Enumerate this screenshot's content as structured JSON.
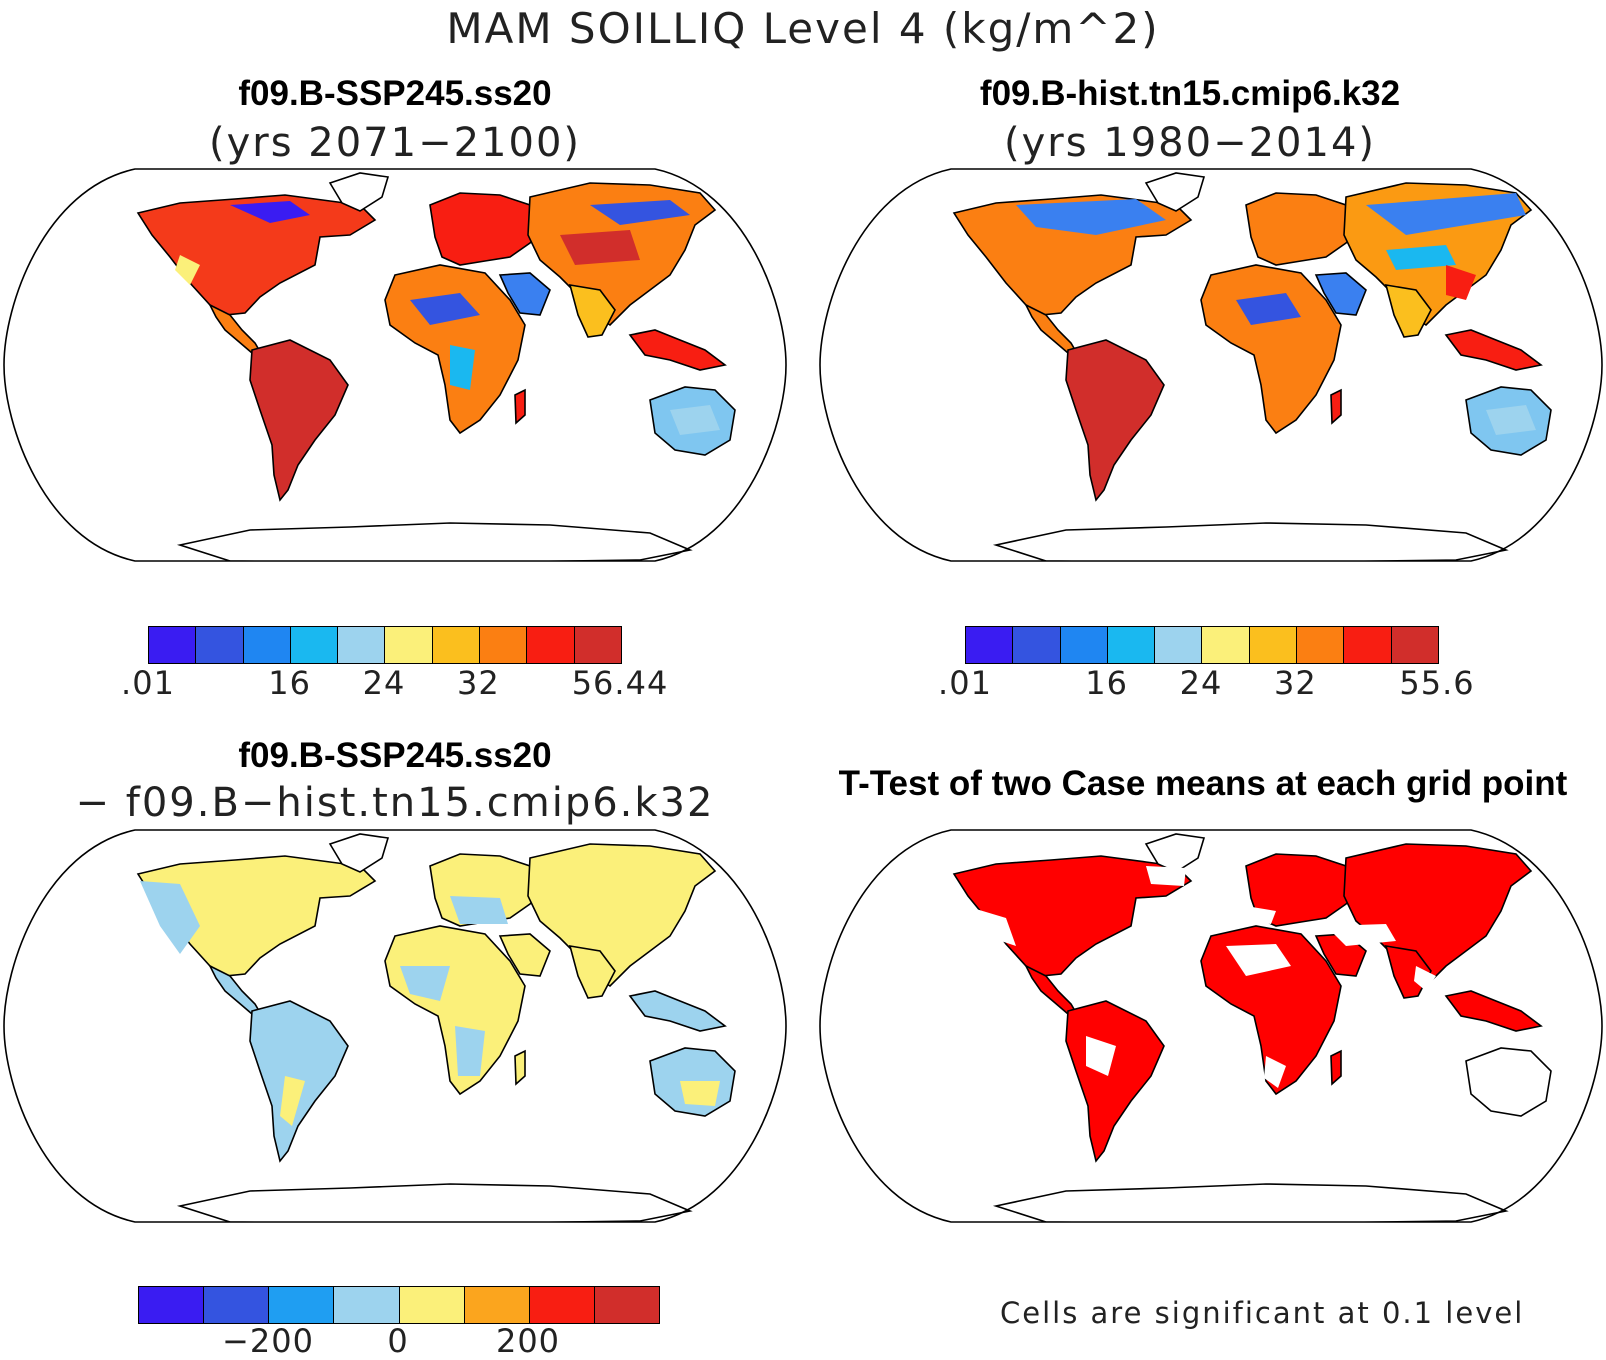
{
  "title": "MAM SOILLIQ Level 4 (kg/m^2)",
  "panels": [
    {
      "title": "f09.B-SSP245.ss20",
      "subtitle": "(yrs 2071−2100)",
      "colorbar": {
        "colors": [
          "#3a1cf2",
          "#3454e0",
          "#1f86f2",
          "#1ab8f0",
          "#9dd3ee",
          "#fbf07a",
          "#fbbf1e",
          "#fb7f12",
          "#f81e12",
          "#d12e2b"
        ],
        "ticks": [
          ".01",
          "16",
          "24",
          "32",
          "56.44"
        ]
      }
    },
    {
      "title": "f09.B-hist.tn15.cmip6.k32",
      "subtitle": "(yrs 1980−2014)",
      "colorbar": {
        "colors": [
          "#3a1cf2",
          "#3454e0",
          "#1f86f2",
          "#1ab8f0",
          "#9dd3ee",
          "#fbf07a",
          "#fbbf1e",
          "#fb7f12",
          "#f81e12",
          "#d12e2b"
        ],
        "ticks": [
          ".01",
          "16",
          "24",
          "32",
          "55.6"
        ]
      }
    },
    {
      "title": "f09.B-SSP245.ss20",
      "subtitle": "− f09.B−hist.tn15.cmip6.k32",
      "colorbar": {
        "colors": [
          "#3a1cf2",
          "#3454e0",
          "#1f9ef2",
          "#9dd3ee",
          "#fbf07a",
          "#fba51e",
          "#f81e12",
          "#d12e2b"
        ],
        "ticks": [
          "−200",
          "0",
          "200"
        ]
      }
    },
    {
      "title": "T-Test of two Case means at each grid point",
      "footnote": "Cells are significant at 0.1 level",
      "fill_color": "#ff0000"
    }
  ]
}
